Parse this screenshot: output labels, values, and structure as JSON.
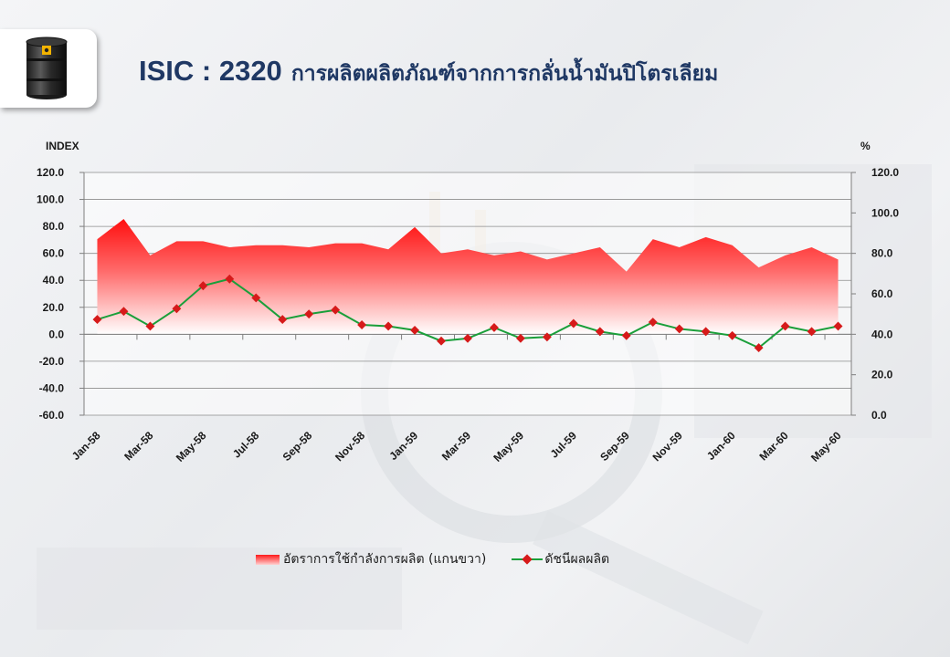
{
  "header": {
    "code": "ISIC : 2320",
    "name": "การผลิตผลิตภัณฑ์จากการกลั่นน้ำมันปิโตรเลียม",
    "logo_icon": "oil-barrel-icon"
  },
  "chart_data": {
    "type": "line",
    "left_axis_label": "INDEX",
    "right_axis_label": "%",
    "left_axis": {
      "min": -60,
      "max": 120,
      "step": 20,
      "tick_labels": [
        "120.0",
        "100.0",
        "80.0",
        "60.0",
        "40.0",
        "20.0",
        "0.0",
        "-20.0",
        "-40.0",
        "-60.0"
      ]
    },
    "right_axis": {
      "min": 0,
      "max": 120,
      "step": 20,
      "tick_labels": [
        "120.0",
        "100.0",
        "80.0",
        "60.0",
        "40.0",
        "20.0",
        "0.0"
      ]
    },
    "months": [
      "Jan-58",
      "Feb-58",
      "Mar-58",
      "Apr-58",
      "May-58",
      "Jun-58",
      "Jul-58",
      "Aug-58",
      "Sep-58",
      "Oct-58",
      "Nov-58",
      "Dec-58",
      "Jan-59",
      "Feb-59",
      "Mar-59",
      "Apr-59",
      "May-59",
      "Jun-59",
      "Jul-59",
      "Aug-59",
      "Sep-59",
      "Oct-59",
      "Nov-59",
      "Dec-59",
      "Jan-60",
      "Feb-60",
      "Mar-60",
      "Apr-60",
      "May-60"
    ],
    "x_tick_labels": [
      "Jan-58",
      "Mar-58",
      "May-58",
      "Jul-58",
      "Sep-58",
      "Nov-58",
      "Jan-59",
      "Mar-59",
      "May-59",
      "Jul-59",
      "Sep-59",
      "Nov-59",
      "Jan-60",
      "Mar-60",
      "May-60"
    ],
    "grid": true,
    "legend_position": "bottom",
    "series": [
      {
        "name": "อัตราการใช้กำลังการผลิต (แกนขวา)",
        "type": "area",
        "axis": "right",
        "color": "#ff1a1a",
        "values": [
          87,
          97,
          79,
          86,
          86,
          83,
          84,
          84,
          83,
          85,
          85,
          82,
          93,
          80,
          82,
          79,
          81,
          77,
          80,
          83,
          71,
          87,
          83,
          88,
          84,
          73,
          79,
          83,
          77
        ]
      },
      {
        "name": "ดัชนีผลผลิต",
        "type": "line",
        "axis": "left",
        "color": "#1a9f3a",
        "marker_color": "#d61a1a",
        "values": [
          11,
          17,
          6,
          19,
          36,
          41,
          27,
          11,
          15,
          18,
          7,
          6,
          3,
          -5,
          -3,
          5,
          -3,
          -2,
          8,
          2,
          -1,
          9,
          4,
          2,
          -1,
          -10,
          6,
          2,
          6
        ]
      }
    ]
  }
}
